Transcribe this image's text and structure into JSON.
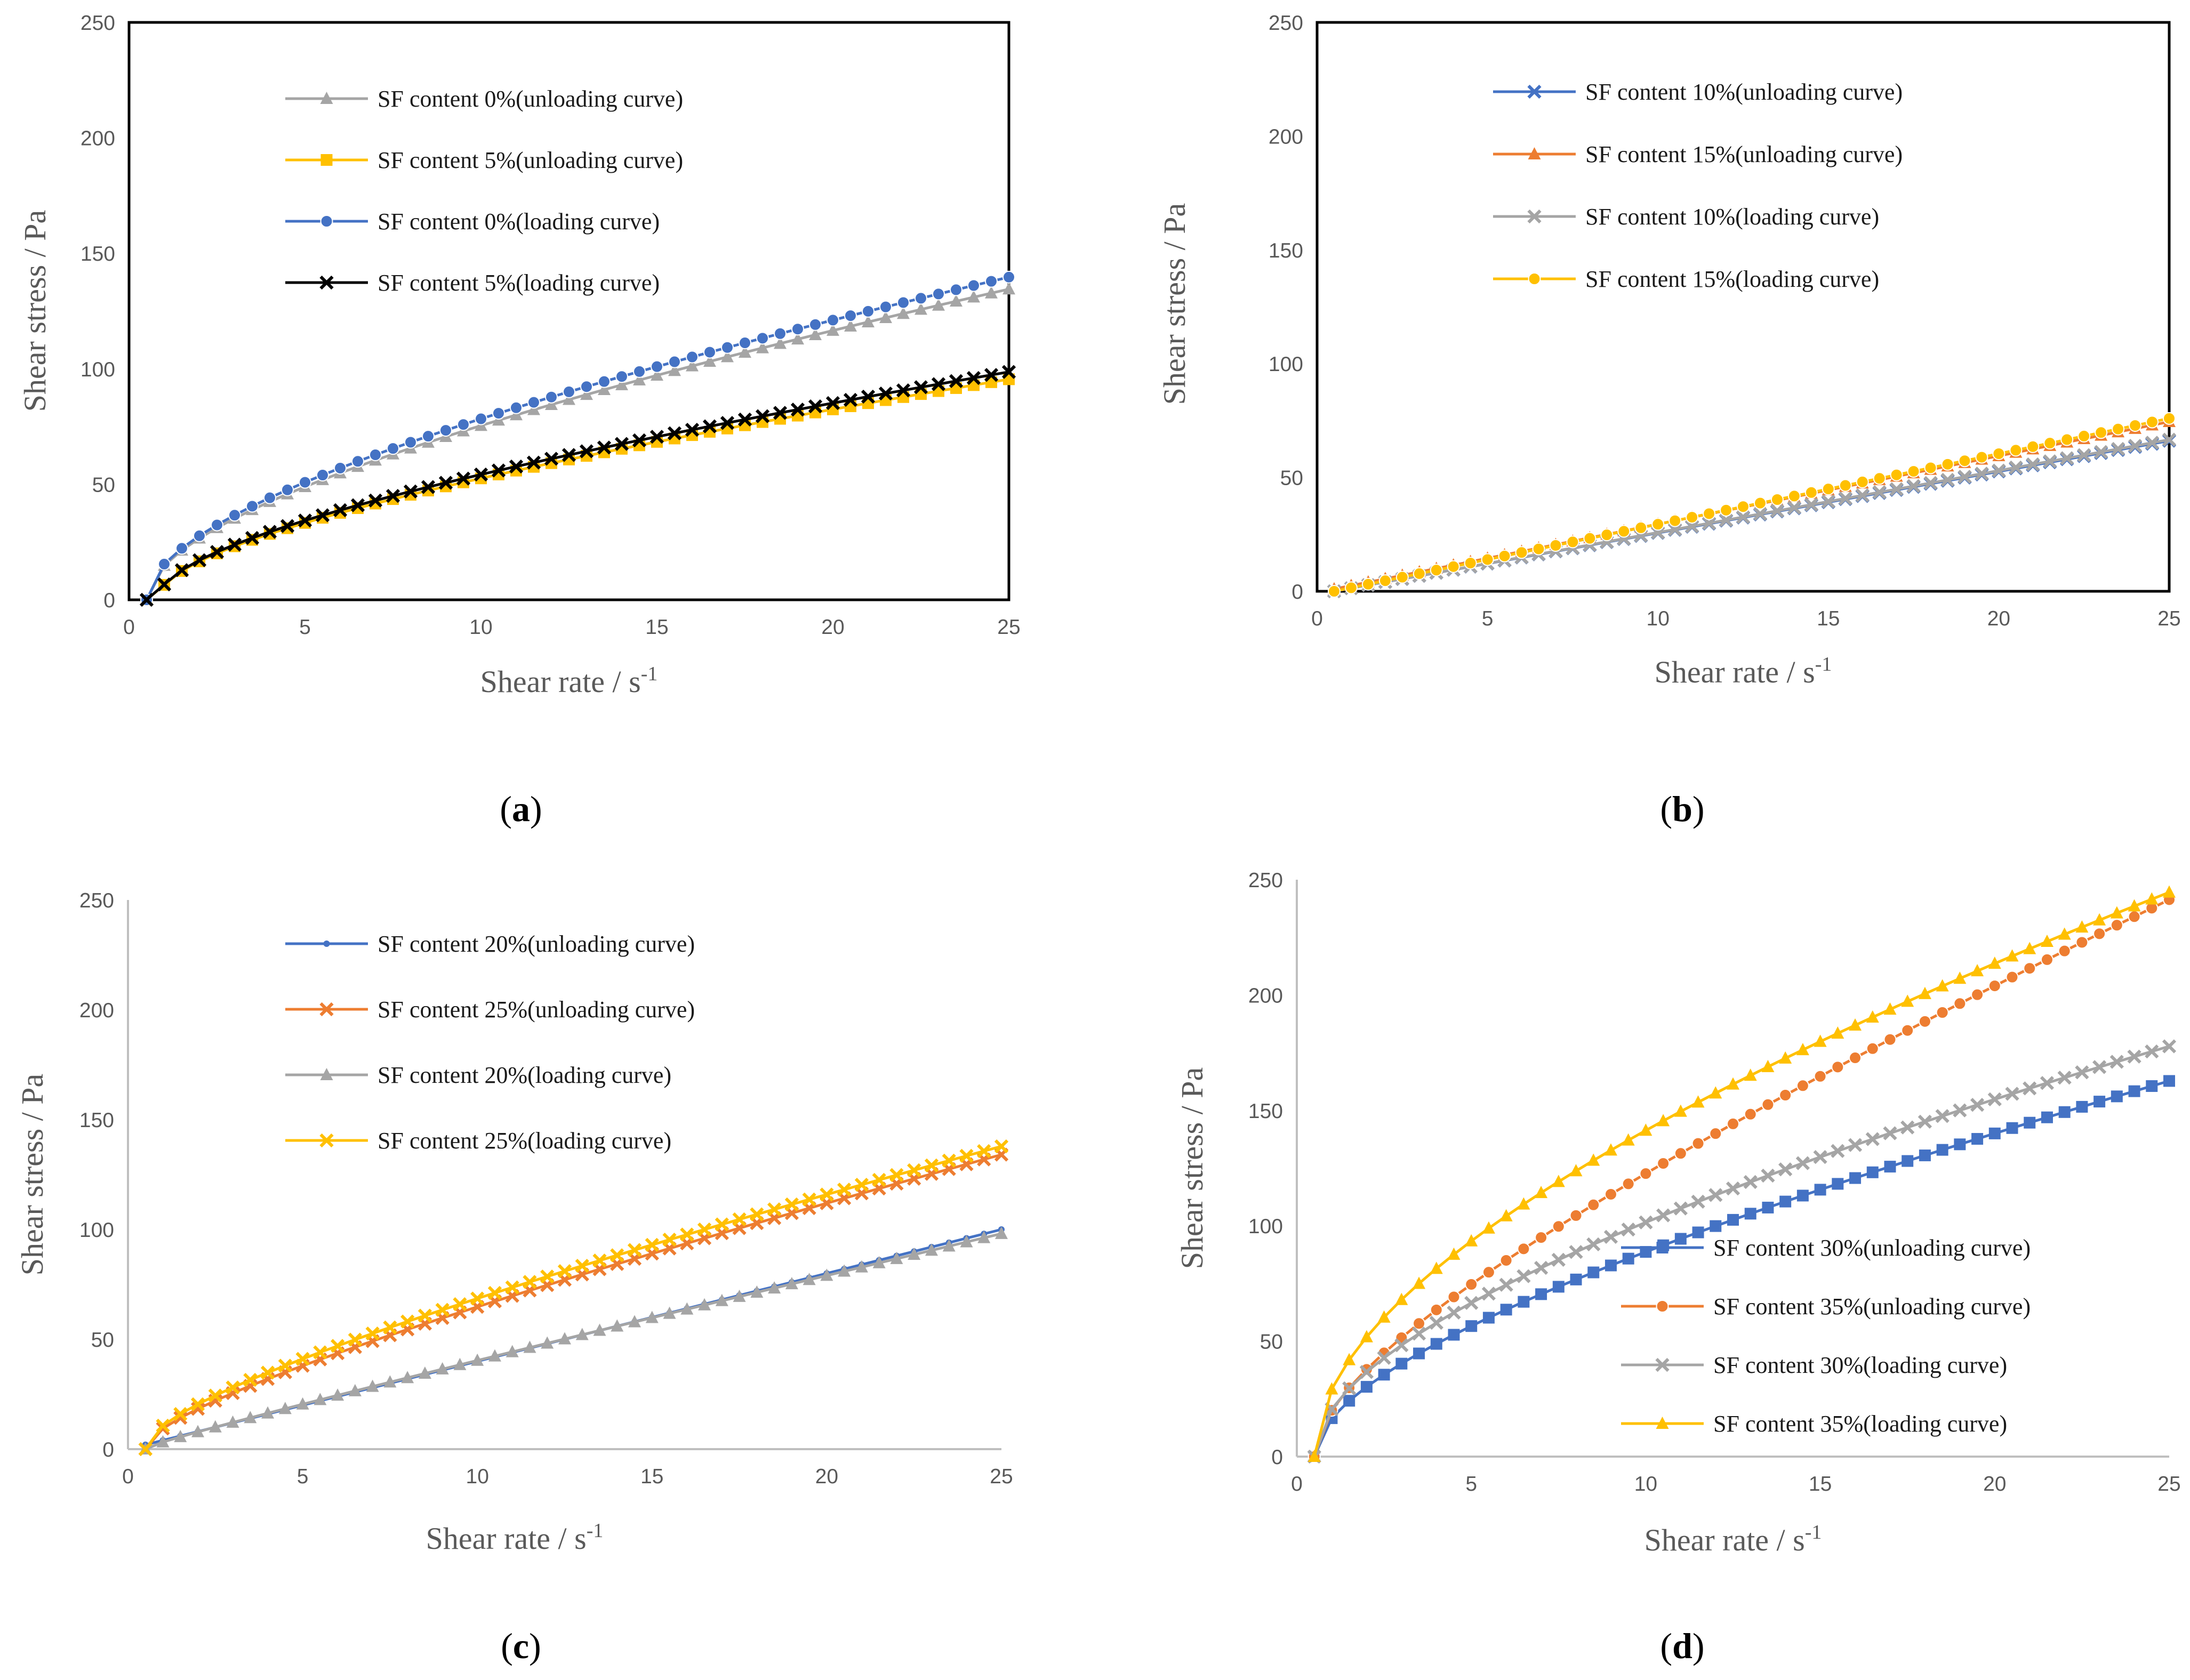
{
  "chart_data": [
    {
      "id": "a",
      "type": "line",
      "caption_label": "a",
      "xlabel": "Shear rate / s",
      "xlabel_sup": "-1",
      "ylabel": "Shear stress / Pa",
      "xlim": [
        0,
        25
      ],
      "ylim": [
        0,
        250
      ],
      "xticks": [
        0,
        5,
        10,
        15,
        20,
        25
      ],
      "yticks": [
        0,
        50,
        100,
        150,
        200,
        250
      ],
      "legend_position": "top-left",
      "series": [
        {
          "name": "SF content 0%(unloading curve)",
          "color": "#a5a5a5",
          "marker": "triangle",
          "x0": 0.5,
          "x1": 25,
          "a": 0.5,
          "b": 1.45,
          "c": 20.0,
          "power": 0.5,
          "y0": 0
        },
        {
          "name": "SF content 5%(unloading curve)",
          "color": "#ffc000",
          "marker": "square",
          "x0": 0.5,
          "x1": 25,
          "a": 0.8,
          "b": 1.1,
          "c": 14.0,
          "power": 0.5,
          "y0": 0
        },
        {
          "name": "SF content 0%(loading curve)",
          "color": "#4472c4",
          "marker": "circle",
          "x0": 0.5,
          "x1": 25,
          "a": 0.5,
          "b": 1.5,
          "c": 20.8,
          "power": 0.5,
          "y0": 0
        },
        {
          "name": "SF content 5%(loading curve)",
          "color": "#000000",
          "marker": "x",
          "x0": 0.5,
          "x1": 25,
          "a": 0.8,
          "b": 1.15,
          "c": 14.4,
          "power": 0.5,
          "y0": 0
        }
      ]
    },
    {
      "id": "b",
      "type": "line",
      "caption_label": "b",
      "xlabel": "Shear rate / s",
      "xlabel_sup": "-1",
      "ylabel": "Shear stress / Pa",
      "xlim": [
        0,
        25
      ],
      "ylim": [
        0,
        250
      ],
      "xticks": [
        0,
        5,
        10,
        15,
        20,
        25
      ],
      "yticks": [
        0,
        50,
        100,
        150,
        200,
        250
      ],
      "legend_position": "top-left",
      "series": [
        {
          "name": "SF content 10%(unloading curve)",
          "color": "#4472c4",
          "marker": "x",
          "x0": 0.5,
          "x1": 25,
          "a": 0.5,
          "b": 2.7,
          "c": 0,
          "power": 1,
          "y0": 0
        },
        {
          "name": "SF content 15%(unloading curve)",
          "color": "#ed7d31",
          "marker": "triangle",
          "x0": 0.5,
          "x1": 25,
          "a": 0.5,
          "b": 3.0,
          "c": 0,
          "power": 1,
          "y0": 1
        },
        {
          "name": "SF content 10%(loading curve)",
          "color": "#a5a5a5",
          "marker": "x",
          "x0": 0.5,
          "x1": 25,
          "a": 0.5,
          "b": 2.72,
          "c": 0,
          "power": 1,
          "y0": 0
        },
        {
          "name": "SF content 15%(loading curve)",
          "color": "#ffc000",
          "marker": "circle",
          "x0": 0.5,
          "x1": 25,
          "a": 0.5,
          "b": 3.1,
          "c": 0,
          "power": 1,
          "y0": 0
        }
      ]
    },
    {
      "id": "c",
      "type": "line",
      "caption_label": "c",
      "xlabel": "Shear rate / s",
      "xlabel_sup": "-1",
      "ylabel": "Shear stress / Pa",
      "xlim": [
        0,
        25
      ],
      "ylim": [
        0,
        250
      ],
      "xticks": [
        0,
        5,
        10,
        15,
        20,
        25
      ],
      "yticks": [
        0,
        50,
        100,
        150,
        200,
        250
      ],
      "legend_position": "top-left",
      "series": [
        {
          "name": "SF content 20%(unloading curve)",
          "color": "#4472c4",
          "marker": "dot",
          "x0": 0.5,
          "x1": 25,
          "a": 0.5,
          "b": 4.0,
          "c": 0,
          "power": 1,
          "y0": 2
        },
        {
          "name": "SF content 25%(unloading curve)",
          "color": "#ed7d31",
          "marker": "x",
          "x0": 0.5,
          "x1": 25,
          "a": 0.5,
          "b": 3.25,
          "c": 11.0,
          "power": 0.5,
          "y0": 0
        },
        {
          "name": "SF content 20%(loading curve)",
          "color": "#a5a5a5",
          "marker": "triangle",
          "x0": 0.5,
          "x1": 25,
          "a": 0.5,
          "b": 3.6,
          "c": 2.0,
          "power": 0.5,
          "y0": 0
        },
        {
          "name": "SF content 25%(loading curve)",
          "color": "#ffc000",
          "marker": "x",
          "x0": 0.5,
          "x1": 25,
          "a": 0.5,
          "b": 3.0,
          "c": 13.0,
          "power": 0.5,
          "y0": 0
        }
      ]
    },
    {
      "id": "d",
      "type": "line",
      "caption_label": "d",
      "xlabel": "Shear rate / s",
      "xlabel_sup": "-1",
      "ylabel": "Shear stress / Pa",
      "xlim": [
        0,
        25
      ],
      "ylim": [
        0,
        250
      ],
      "xticks": [
        0,
        5,
        10,
        15,
        20,
        25
      ],
      "yticks": [
        0,
        50,
        100,
        150,
        200,
        250
      ],
      "legend_position": "bottom-right",
      "series": [
        {
          "name": "SF content 30%(unloading curve)",
          "color": "#4472c4",
          "marker": "square",
          "x0": 0.5,
          "x1": 25,
          "a": 0.5,
          "b": 2.2,
          "c": 22.0,
          "power": 0.5,
          "y0": 0
        },
        {
          "name": "SF content 35%(unloading curve)",
          "color": "#ed7d31",
          "marker": "circle",
          "x0": 0.5,
          "x1": 25,
          "a": 0.5,
          "b": 4.8,
          "c": 25.0,
          "power": 0.5,
          "y0": 0
        },
        {
          "name": "SF content 30%(loading curve)",
          "color": "#a5a5a5",
          "marker": "x",
          "x0": 0.5,
          "x1": 25,
          "a": 0.5,
          "b": 1.6,
          "c": 28.0,
          "power": 0.5,
          "y0": 0
        },
        {
          "name": "SF content 35%(loading curve)",
          "color": "#ffc000",
          "marker": "triangle",
          "x0": 0.5,
          "x1": 25,
          "a": 0.5,
          "b": 1.9,
          "c": 40.0,
          "power": 0.5,
          "y0": 0
        }
      ]
    }
  ]
}
